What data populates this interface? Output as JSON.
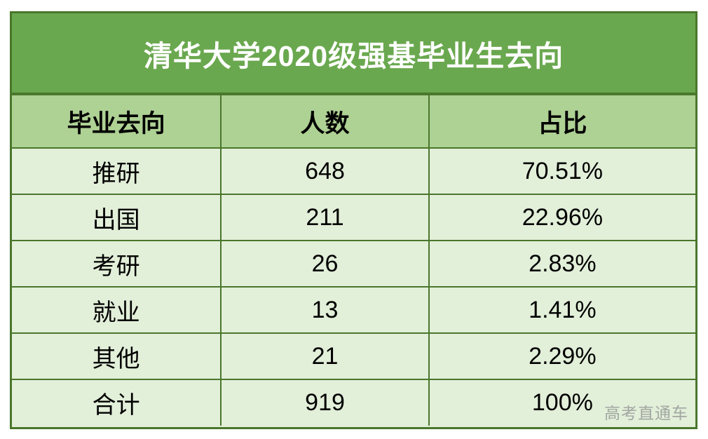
{
  "title": "清华大学2020级强基毕业生去向",
  "watermark": "高考直通车",
  "colors": {
    "title_bg": "#6aa84f",
    "title_text": "#ffffff",
    "header_bg": "#aed194",
    "row_bg": "#e2efd9",
    "border": "#4a772c",
    "body_text": "#000000",
    "watermark_text": "#a2a7a2"
  },
  "table": {
    "headers": [
      "毕业去向",
      "人数",
      "占比"
    ],
    "rows": [
      {
        "category": "推研",
        "count": "648",
        "percent": "70.51%"
      },
      {
        "category": "出国",
        "count": "211",
        "percent": "22.96%"
      },
      {
        "category": "考研",
        "count": "26",
        "percent": "2.83%"
      },
      {
        "category": "就业",
        "count": "13",
        "percent": "1.41%"
      },
      {
        "category": "其他",
        "count": "21",
        "percent": "2.29%"
      },
      {
        "category": "合计",
        "count": "919",
        "percent": "100%"
      }
    ]
  },
  "chart_data": {
    "type": "table",
    "title": "清华大学2020级强基毕业生去向",
    "columns": [
      "毕业去向",
      "人数",
      "占比"
    ],
    "rows": [
      [
        "推研",
        648,
        "70.51%"
      ],
      [
        "出国",
        211,
        "22.96%"
      ],
      [
        "考研",
        26,
        "2.83%"
      ],
      [
        "就业",
        13,
        "1.41%"
      ],
      [
        "其他",
        21,
        "2.29%"
      ],
      [
        "合计",
        919,
        "100%"
      ]
    ],
    "notes": "合计 row is the total of the five destination rows"
  }
}
